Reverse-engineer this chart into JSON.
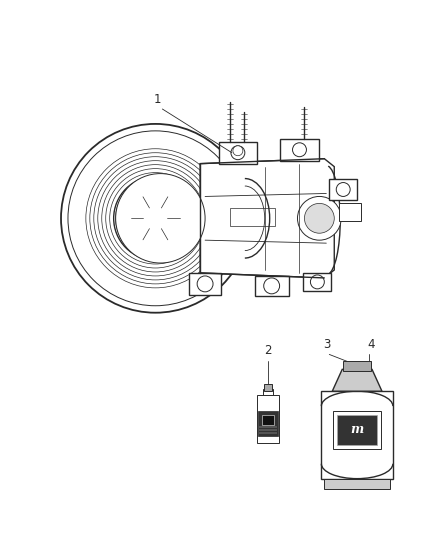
{
  "bg_color": "#ffffff",
  "line_color": "#2a2a2a",
  "gray1": "#888888",
  "gray2": "#aaaaaa",
  "gray3": "#cccccc",
  "gray4": "#dddddd",
  "label_fontsize": 8.5,
  "fig_width": 4.38,
  "fig_height": 5.33,
  "dpi": 100
}
